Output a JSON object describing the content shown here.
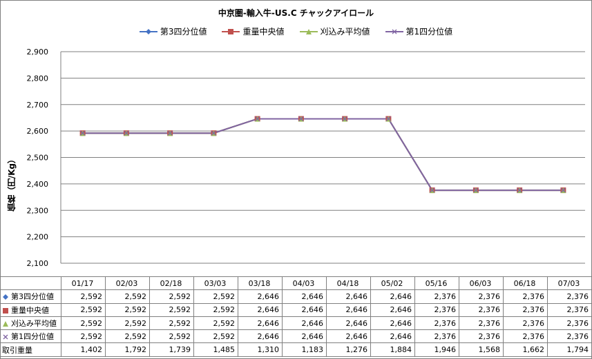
{
  "chart_data": {
    "type": "line",
    "title": "中京圏-輸入牛-US.C チャックアイロール",
    "ylabel": "価格（円/Kg）",
    "ylim": [
      2100,
      2900
    ],
    "yticks": [
      2100,
      2200,
      2300,
      2400,
      2500,
      2600,
      2700,
      2800,
      2900
    ],
    "ytick_labels": [
      "2,100",
      "2,200",
      "2,300",
      "2,400",
      "2,500",
      "2,600",
      "2,700",
      "2,800",
      "2,900"
    ],
    "grid": true,
    "legend_position": "top",
    "categories": [
      "01/17",
      "02/03",
      "02/18",
      "03/03",
      "03/18",
      "04/03",
      "04/18",
      "05/02",
      "05/16",
      "06/03",
      "06/18",
      "07/03"
    ],
    "series": [
      {
        "name": "第3四分位値",
        "marker": "diamond",
        "color": "#4472C4",
        "values": [
          2592,
          2592,
          2592,
          2592,
          2646,
          2646,
          2646,
          2646,
          2376,
          2376,
          2376,
          2376
        ],
        "value_labels": [
          "2,592",
          "2,592",
          "2,592",
          "2,592",
          "2,646",
          "2,646",
          "2,646",
          "2,646",
          "2,376",
          "2,376",
          "2,376",
          "2,376"
        ]
      },
      {
        "name": "重量中央値",
        "marker": "square",
        "color": "#C0504D",
        "values": [
          2592,
          2592,
          2592,
          2592,
          2646,
          2646,
          2646,
          2646,
          2376,
          2376,
          2376,
          2376
        ],
        "value_labels": [
          "2,592",
          "2,592",
          "2,592",
          "2,592",
          "2,646",
          "2,646",
          "2,646",
          "2,646",
          "2,376",
          "2,376",
          "2,376",
          "2,376"
        ]
      },
      {
        "name": "刈込み平均値",
        "marker": "triangle",
        "color": "#9BBB59",
        "values": [
          2592,
          2592,
          2592,
          2592,
          2646,
          2646,
          2646,
          2646,
          2376,
          2376,
          2376,
          2376
        ],
        "value_labels": [
          "2,592",
          "2,592",
          "2,592",
          "2,592",
          "2,646",
          "2,646",
          "2,646",
          "2,646",
          "2,376",
          "2,376",
          "2,376",
          "2,376"
        ]
      },
      {
        "name": "第1四分位値",
        "marker": "x",
        "color": "#8064A2",
        "values": [
          2592,
          2592,
          2592,
          2592,
          2646,
          2646,
          2646,
          2646,
          2376,
          2376,
          2376,
          2376
        ],
        "value_labels": [
          "2,592",
          "2,592",
          "2,592",
          "2,592",
          "2,646",
          "2,646",
          "2,646",
          "2,646",
          "2,376",
          "2,376",
          "2,376",
          "2,376"
        ]
      }
    ],
    "table_extra_row": {
      "name": "取引重量",
      "values": [
        1402,
        1792,
        1739,
        1485,
        1310,
        1183,
        1276,
        1884,
        1946,
        1568,
        1662,
        1794
      ],
      "value_labels": [
        "1,402",
        "1,792",
        "1,739",
        "1,485",
        "1,310",
        "1,183",
        "1,276",
        "1,884",
        "1,946",
        "1,568",
        "1,662",
        "1,794"
      ]
    }
  },
  "colors": {
    "grid": "#7f7f7f",
    "border": "#7f7f7f"
  }
}
